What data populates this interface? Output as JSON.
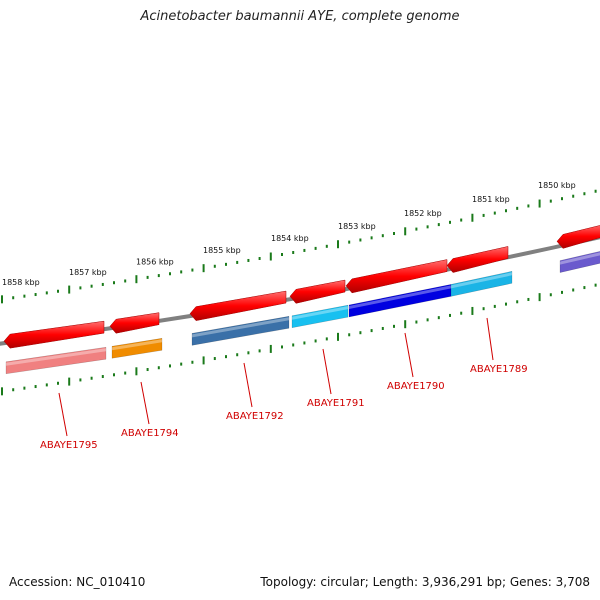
{
  "title": "Acinetobacter baumannii AYE, complete genome",
  "footer": {
    "accession": "Accession: NC_010410",
    "topology": "Topology: circular; Length: 3,936,291 bp; Genes: 3,708"
  },
  "colors": {
    "backbone": "#808080",
    "ticks": "#1a7a1a",
    "label": "#d00000",
    "forward": "#ff0000",
    "reverse": "#ff0000"
  },
  "scale": {
    "ticks": [
      {
        "kbp": 1850,
        "label": "1850 kbp"
      },
      {
        "kbp": 1851,
        "label": "1851 kbp"
      },
      {
        "kbp": 1852,
        "label": "1852 kbp"
      },
      {
        "kbp": 1853,
        "label": "1853 kbp"
      },
      {
        "kbp": 1854,
        "label": "1854 kbp"
      },
      {
        "kbp": 1855,
        "label": "1855 kbp"
      },
      {
        "kbp": 1856,
        "label": "1856 kbp"
      },
      {
        "kbp": 1857,
        "label": "1857 kbp"
      },
      {
        "kbp": 1858,
        "label": "1858 kbp"
      }
    ]
  },
  "genes": [
    {
      "name": "ABAYE1789",
      "func_color": "#1ab4e6"
    },
    {
      "name": "ABAYE1790",
      "func_color": "#0000e0"
    },
    {
      "name": "ABAYE1791",
      "func_color": "#18c0f0"
    },
    {
      "name": "ABAYE1792",
      "func_color": "#3a70a8"
    },
    {
      "name": "ABAYE1794",
      "func_color": "#f08c00"
    },
    {
      "name": "ABAYE1795",
      "func_color": "#f08080"
    },
    {
      "name": "",
      "func_color": "#6a5acd"
    }
  ]
}
